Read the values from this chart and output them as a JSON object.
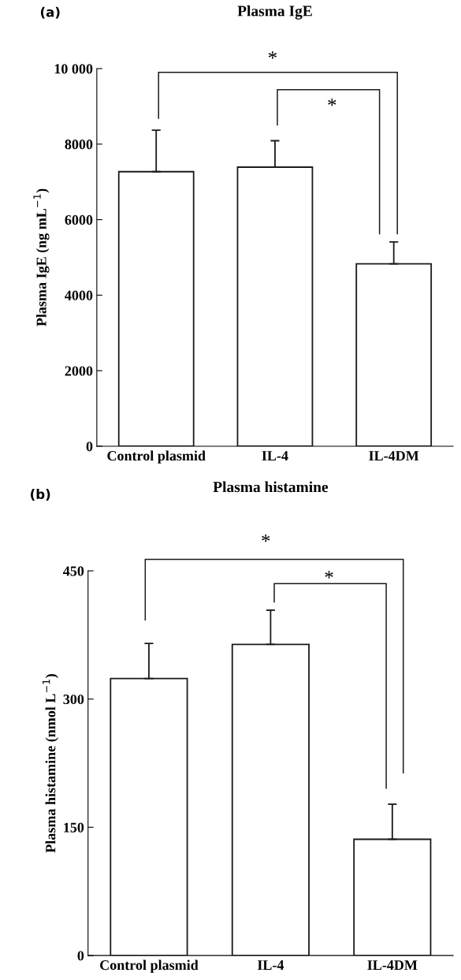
{
  "chart_data": [
    {
      "type": "bar",
      "title": "Plasma IgE",
      "ylabel": "Plasma IgE (ng mL$^{−1}$)",
      "categories": [
        "Control plasmid",
        "IL-4",
        "IL-4DM"
      ],
      "values": [
        7270,
        7390,
        4830
      ],
      "errors": [
        [
          7270,
          8370
        ],
        [
          7390,
          8090
        ],
        [
          4830,
          5410
        ]
      ],
      "color": "#ffffff",
      "ylim": [
        0,
        10000
      ],
      "yticks": [
        0,
        2000,
        4000,
        6000,
        8000,
        {
          "value": 10000,
          "label": "10 000"
        }
      ],
      "grid": false,
      "annotations": [
        "(a)",
        "*",
        "*"
      ]
    },
    {
      "type": "bar",
      "title": "Plasma histamine",
      "ylabel": "Plasma histamine (nmol L$^{−1}$)",
      "categories": [
        "Control plasmid",
        "IL-4",
        "IL-4DM"
      ],
      "values": [
        324,
        364,
        136
      ],
      "errors": [
        [
          324,
          365
        ],
        [
          364,
          404
        ],
        [
          136,
          177
        ]
      ],
      "color": "#ffffff",
      "ylim": [
        0,
        450
      ],
      "yticks": [
        0,
        150,
        300,
        450
      ],
      "grid": false,
      "annotations": [
        "(b)",
        "*",
        "*"
      ]
    }
  ]
}
